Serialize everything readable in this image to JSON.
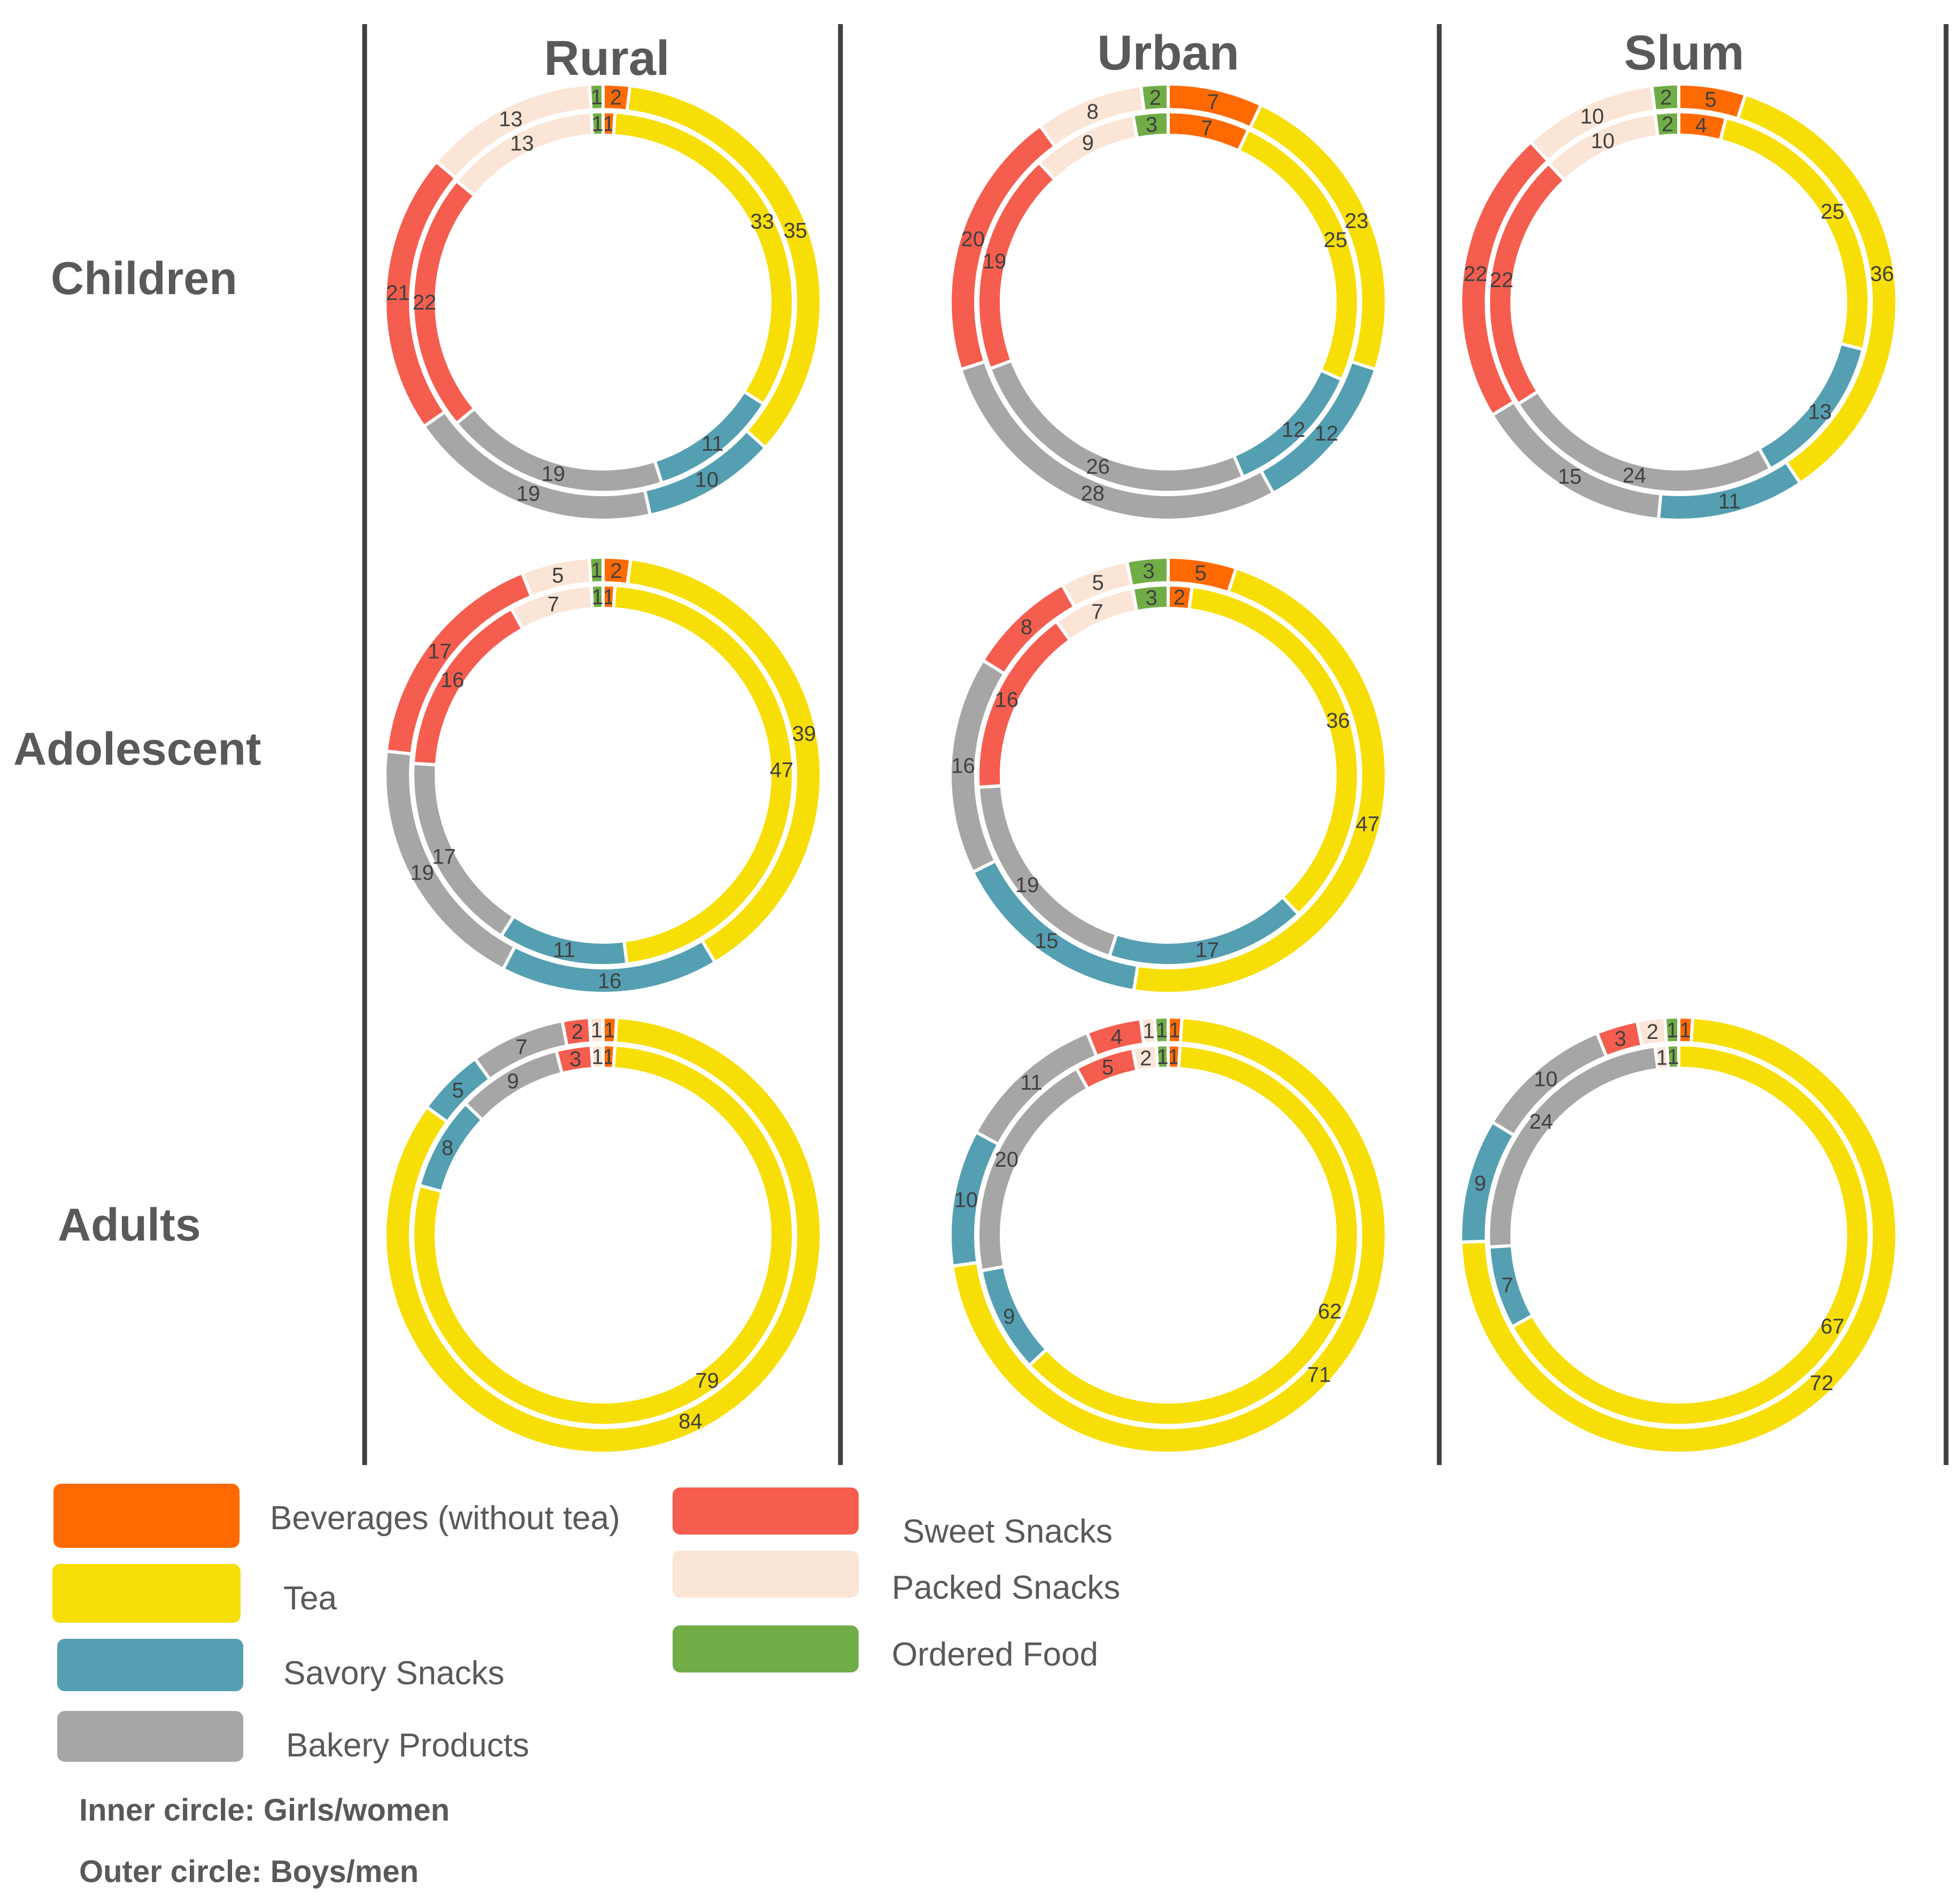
{
  "chart_data": {
    "type": "donut-grid",
    "columns": [
      "Rural",
      "Urban",
      "Slum"
    ],
    "rows": [
      "Children",
      "Adolescent",
      "Adults"
    ],
    "categories": [
      "Beverages (without tea)",
      "Tea",
      "Savory Snacks",
      "Bakery Products",
      "Sweet Snacks",
      "Packed Snacks",
      "Ordered Food"
    ],
    "colors": {
      "Beverages (without tea)": "#FF6A00",
      "Tea": "#F7DE06",
      "Savory Snacks": "#559FB2",
      "Bakery Products": "#A6A6A6",
      "Sweet Snacks": "#F55D4F",
      "Packed Snacks": "#FBE5D6",
      "Ordered Food": "#70AD47"
    },
    "panels": [
      {
        "column": "Rural",
        "row": "Children",
        "inner": {
          "Beverages (without tea)": 1,
          "Tea": 33,
          "Savory Snacks": 11,
          "Bakery Products": 19,
          "Sweet Snacks": 22,
          "Packed Snacks": 13,
          "Ordered Food": 1
        },
        "outer": {
          "Beverages (without tea)": 2,
          "Tea": 35,
          "Savory Snacks": 10,
          "Bakery Products": 19,
          "Sweet Snacks": 21,
          "Packed Snacks": 13,
          "Ordered Food": 1
        }
      },
      {
        "column": "Urban",
        "row": "Children",
        "inner": {
          "Beverages (without tea)": 7,
          "Tea": 25,
          "Savory Snacks": 12,
          "Bakery Products": 26,
          "Sweet Snacks": 19,
          "Packed Snacks": 9,
          "Ordered Food": 3
        },
        "outer": {
          "Beverages (without tea)": 7,
          "Tea": 23,
          "Savory Snacks": 12,
          "Bakery Products": 28,
          "Sweet Snacks": 20,
          "Packed Snacks": 8,
          "Ordered Food": 2
        }
      },
      {
        "column": "Slum",
        "row": "Children",
        "inner": {
          "Beverages (without tea)": 4,
          "Tea": 25,
          "Savory Snacks": 13,
          "Bakery Products": 24,
          "Sweet Snacks": 22,
          "Packed Snacks": 10,
          "Ordered Food": 2
        },
        "outer": {
          "Beverages (without tea)": 5,
          "Tea": 36,
          "Savory Snacks": 11,
          "Bakery Products": 15,
          "Sweet Snacks": 22,
          "Packed Snacks": 10,
          "Ordered Food": 2
        }
      },
      {
        "column": "Rural",
        "row": "Adolescent",
        "inner": {
          "Beverages (without tea)": 1,
          "Tea": 47,
          "Savory Snacks": 11,
          "Bakery Products": 17,
          "Sweet Snacks": 16,
          "Packed Snacks": 7,
          "Ordered Food": 1
        },
        "outer": {
          "Beverages (without tea)": 2,
          "Tea": 39,
          "Savory Snacks": 16,
          "Bakery Products": 19,
          "Sweet Snacks": 17,
          "Packed Snacks": 5,
          "Ordered Food": 1
        }
      },
      {
        "column": "Urban",
        "row": "Adolescent",
        "inner": {
          "Beverages (without tea)": 2,
          "Tea": 36,
          "Savory Snacks": 17,
          "Bakery Products": 19,
          "Sweet Snacks": 16,
          "Packed Snacks": 7,
          "Ordered Food": 3
        },
        "outer": {
          "Beverages (without tea)": 5,
          "Tea": 47,
          "Savory Snacks": 15,
          "Bakery Products": 16,
          "Sweet Snacks": 8,
          "Packed Snacks": 5,
          "Ordered Food": 3
        }
      },
      {
        "column": "Rural",
        "row": "Adults",
        "inner": {
          "Beverages (without tea)": 1,
          "Tea": 79,
          "Savory Snacks": 8,
          "Bakery Products": 9,
          "Sweet Snacks": 3,
          "Packed Snacks": 1,
          "Ordered Food": 0
        },
        "outer": {
          "Beverages (without tea)": 1,
          "Tea": 84,
          "Savory Snacks": 5,
          "Bakery Products": 7,
          "Sweet Snacks": 2,
          "Packed Snacks": 1,
          "Ordered Food": 0
        }
      },
      {
        "column": "Urban",
        "row": "Adults",
        "inner": {
          "Beverages (without tea)": 1,
          "Tea": 62,
          "Savory Snacks": 9,
          "Bakery Products": 20,
          "Sweet Snacks": 5,
          "Packed Snacks": 2,
          "Ordered Food": 1
        },
        "outer": {
          "Beverages (without tea)": 1,
          "Tea": 71,
          "Savory Snacks": 10,
          "Bakery Products": 11,
          "Sweet Snacks": 4,
          "Packed Snacks": 1,
          "Ordered Food": 1
        }
      },
      {
        "column": "Slum",
        "row": "Adults",
        "inner": {
          "Beverages (without tea)": 0,
          "Tea": 67,
          "Savory Snacks": 7,
          "Bakery Products": 24,
          "Sweet Snacks": 0,
          "Packed Snacks": 1,
          "Ordered Food": 1
        },
        "outer": {
          "Beverages (without tea)": 1,
          "Tea": 72,
          "Savory Snacks": 9,
          "Bakery Products": 10,
          "Sweet Snacks": 3,
          "Packed Snacks": 2,
          "Ordered Food": 1
        }
      }
    ],
    "legend": [
      "Beverages (without tea)",
      "Tea",
      "Savory Snacks",
      "Bakery Products",
      "Sweet Snacks",
      "Packed Snacks",
      "Ordered Food"
    ],
    "notes": [
      "Inner circle: Girls/women",
      "Outer circle: Boys/men"
    ]
  }
}
